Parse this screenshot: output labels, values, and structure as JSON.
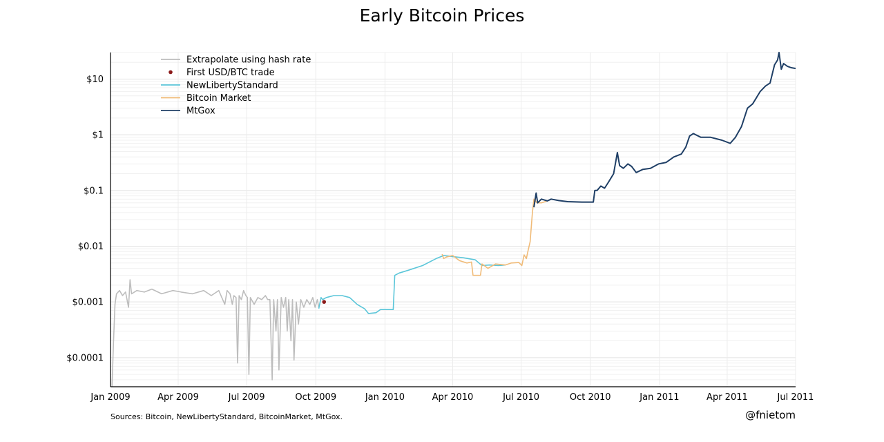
{
  "chart_data": {
    "type": "line",
    "title": "Early Bitcoin Prices",
    "xlabel": "",
    "ylabel": "",
    "yscale": "log",
    "ylim": [
      3e-05,
      30
    ],
    "xlim": [
      "2009-01-01",
      "2011-07-01"
    ],
    "grid": true,
    "legend_placement": "top-left",
    "x_tick_labels": [
      "Jan 2009",
      "Apr 2009",
      "Jul 2009",
      "Oct 2009",
      "Jan 2010",
      "Apr 2010",
      "Jul 2010",
      "Oct 2010",
      "Jan 2011",
      "Apr 2011",
      "Jul 2011"
    ],
    "x_tick_dates": [
      "2009-01-01",
      "2009-04-01",
      "2009-07-01",
      "2009-10-01",
      "2010-01-01",
      "2010-04-01",
      "2010-07-01",
      "2010-10-01",
      "2011-01-01",
      "2011-04-01",
      "2011-07-01"
    ],
    "y_tick_labels": [
      "$0.0001",
      "$0.001",
      "$0.01",
      "$0.1",
      "$1",
      "$10"
    ],
    "y_tick_values": [
      0.0001,
      0.001,
      0.01,
      0.1,
      1,
      10
    ],
    "series": [
      {
        "name": "Extrapolate using hash rate",
        "color": "#bdbdbd",
        "style": "line",
        "points": [
          [
            "2009-01-03",
            3e-05
          ],
          [
            "2009-01-05",
            0.0002
          ],
          [
            "2009-01-07",
            0.0009
          ],
          [
            "2009-01-09",
            0.0014
          ],
          [
            "2009-01-13",
            0.0016
          ],
          [
            "2009-01-17",
            0.0013
          ],
          [
            "2009-01-21",
            0.0015
          ],
          [
            "2009-01-25",
            0.0008
          ],
          [
            "2009-01-27",
            0.0025
          ],
          [
            "2009-01-29",
            0.0014
          ],
          [
            "2009-02-05",
            0.0016
          ],
          [
            "2009-02-15",
            0.0015
          ],
          [
            "2009-02-25",
            0.0017
          ],
          [
            "2009-03-10",
            0.0014
          ],
          [
            "2009-03-25",
            0.0016
          ],
          [
            "2009-04-05",
            0.0015
          ],
          [
            "2009-04-20",
            0.0014
          ],
          [
            "2009-05-05",
            0.0016
          ],
          [
            "2009-05-15",
            0.0013
          ],
          [
            "2009-05-25",
            0.0016
          ],
          [
            "2009-06-02",
            0.0009
          ],
          [
            "2009-06-05",
            0.0016
          ],
          [
            "2009-06-09",
            0.0014
          ],
          [
            "2009-06-12",
            0.0009
          ],
          [
            "2009-06-14",
            0.0013
          ],
          [
            "2009-06-17",
            0.0012
          ],
          [
            "2009-06-19",
            8e-05
          ],
          [
            "2009-06-21",
            0.0013
          ],
          [
            "2009-06-24",
            0.0011
          ],
          [
            "2009-06-27",
            0.0016
          ],
          [
            "2009-06-30",
            0.0013
          ],
          [
            "2009-07-02",
            0.0012
          ],
          [
            "2009-07-04",
            5e-05
          ],
          [
            "2009-07-06",
            0.0012
          ],
          [
            "2009-07-11",
            0.0009
          ],
          [
            "2009-07-16",
            0.0012
          ],
          [
            "2009-07-21",
            0.0011
          ],
          [
            "2009-07-26",
            0.0013
          ],
          [
            "2009-07-29",
            0.0011
          ],
          [
            "2009-08-01",
            0.0011
          ],
          [
            "2009-08-04",
            4e-05
          ],
          [
            "2009-08-06",
            0.0011
          ],
          [
            "2009-08-09",
            0.0003
          ],
          [
            "2009-08-11",
            0.0011
          ],
          [
            "2009-08-13",
            6e-05
          ],
          [
            "2009-08-16",
            0.0012
          ],
          [
            "2009-08-19",
            0.0008
          ],
          [
            "2009-08-22",
            0.0012
          ],
          [
            "2009-08-24",
            0.0003
          ],
          [
            "2009-08-26",
            0.0011
          ],
          [
            "2009-08-29",
            0.0002
          ],
          [
            "2009-08-31",
            0.0011
          ],
          [
            "2009-09-02",
            9e-05
          ],
          [
            "2009-09-05",
            0.001
          ],
          [
            "2009-09-08",
            0.0004
          ],
          [
            "2009-09-11",
            0.0011
          ],
          [
            "2009-09-15",
            0.0008
          ],
          [
            "2009-09-19",
            0.0011
          ],
          [
            "2009-09-23",
            0.0009
          ],
          [
            "2009-09-27",
            0.0012
          ],
          [
            "2009-09-30",
            0.0008
          ],
          [
            "2009-10-03",
            0.0011
          ],
          [
            "2009-10-05",
            0.0008
          ]
        ]
      },
      {
        "name": "First USD/BTC trade",
        "color": "#8b1a1a",
        "style": "point",
        "points": [
          [
            "2009-10-12",
            0.001
          ]
        ]
      },
      {
        "name": "NewLibertyStandard",
        "color": "#5bc6d9",
        "style": "line",
        "points": [
          [
            "2009-10-05",
            0.00076
          ],
          [
            "2009-10-08",
            0.0012
          ],
          [
            "2009-10-10",
            0.0011
          ],
          [
            "2009-10-15",
            0.0012
          ],
          [
            "2009-10-25",
            0.0013
          ],
          [
            "2009-11-05",
            0.0013
          ],
          [
            "2009-11-15",
            0.0012
          ],
          [
            "2009-11-25",
            0.0009
          ],
          [
            "2009-12-05",
            0.00075
          ],
          [
            "2009-12-10",
            0.00062
          ],
          [
            "2009-12-20",
            0.00064
          ],
          [
            "2009-12-26",
            0.00073
          ],
          [
            "2010-01-12",
            0.00073
          ],
          [
            "2010-01-14",
            0.003
          ],
          [
            "2010-01-20",
            0.0033
          ],
          [
            "2010-02-01",
            0.0037
          ],
          [
            "2010-02-20",
            0.0045
          ],
          [
            "2010-03-10",
            0.006
          ],
          [
            "2010-03-20",
            0.0068
          ],
          [
            "2010-04-01",
            0.0065
          ],
          [
            "2010-04-15",
            0.0062
          ],
          [
            "2010-05-01",
            0.0057
          ],
          [
            "2010-05-10",
            0.0045
          ],
          [
            "2010-05-20",
            0.0046
          ],
          [
            "2010-06-01",
            0.0045
          ],
          [
            "2010-06-10",
            0.0046
          ]
        ]
      },
      {
        "name": "Bitcoin Market",
        "color": "#f0bb78",
        "style": "line",
        "points": [
          [
            "2010-03-18",
            0.0072
          ],
          [
            "2010-03-20",
            0.006
          ],
          [
            "2010-03-24",
            0.0064
          ],
          [
            "2010-04-01",
            0.0068
          ],
          [
            "2010-04-10",
            0.0055
          ],
          [
            "2010-04-20",
            0.005
          ],
          [
            "2010-04-26",
            0.0052
          ],
          [
            "2010-04-28",
            0.003
          ],
          [
            "2010-05-08",
            0.003
          ],
          [
            "2010-05-10",
            0.0048
          ],
          [
            "2010-05-18",
            0.004
          ],
          [
            "2010-05-28",
            0.0048
          ],
          [
            "2010-06-10",
            0.0046
          ],
          [
            "2010-06-18",
            0.005
          ],
          [
            "2010-06-28",
            0.0051
          ],
          [
            "2010-07-02",
            0.0045
          ],
          [
            "2010-07-05",
            0.007
          ],
          [
            "2010-07-08",
            0.006
          ],
          [
            "2010-07-10",
            0.008
          ],
          [
            "2010-07-13",
            0.012
          ],
          [
            "2010-07-16",
            0.04
          ],
          [
            "2010-07-18",
            0.07
          ],
          [
            "2010-07-22",
            0.06
          ],
          [
            "2010-07-28",
            0.06
          ],
          [
            "2010-08-05",
            0.065
          ]
        ]
      },
      {
        "name": "MtGox",
        "color": "#1f3f66",
        "style": "line",
        "points": [
          [
            "2010-07-18",
            0.05
          ],
          [
            "2010-07-21",
            0.09
          ],
          [
            "2010-07-23",
            0.06
          ],
          [
            "2010-07-28",
            0.07
          ],
          [
            "2010-08-05",
            0.065
          ],
          [
            "2010-08-10",
            0.07
          ],
          [
            "2010-08-20",
            0.066
          ],
          [
            "2010-09-01",
            0.063
          ],
          [
            "2010-09-20",
            0.062
          ],
          [
            "2010-10-05",
            0.062
          ],
          [
            "2010-10-07",
            0.1
          ],
          [
            "2010-10-10",
            0.1
          ],
          [
            "2010-10-15",
            0.12
          ],
          [
            "2010-10-20",
            0.11
          ],
          [
            "2010-10-25",
            0.14
          ],
          [
            "2010-11-01",
            0.2
          ],
          [
            "2010-11-06",
            0.48
          ],
          [
            "2010-11-09",
            0.28
          ],
          [
            "2010-11-14",
            0.25
          ],
          [
            "2010-11-20",
            0.3
          ],
          [
            "2010-11-25",
            0.27
          ],
          [
            "2010-12-01",
            0.21
          ],
          [
            "2010-12-10",
            0.24
          ],
          [
            "2010-12-20",
            0.25
          ],
          [
            "2010-12-31",
            0.3
          ],
          [
            "2011-01-10",
            0.32
          ],
          [
            "2011-01-20",
            0.4
          ],
          [
            "2011-01-30",
            0.45
          ],
          [
            "2011-02-05",
            0.6
          ],
          [
            "2011-02-10",
            0.95
          ],
          [
            "2011-02-15",
            1.05
          ],
          [
            "2011-02-25",
            0.9
          ],
          [
            "2011-03-10",
            0.9
          ],
          [
            "2011-03-25",
            0.8
          ],
          [
            "2011-04-05",
            0.7
          ],
          [
            "2011-04-12",
            0.9
          ],
          [
            "2011-04-20",
            1.4
          ],
          [
            "2011-04-28",
            3.0
          ],
          [
            "2011-05-05",
            3.6
          ],
          [
            "2011-05-15",
            6.0
          ],
          [
            "2011-05-22",
            7.5
          ],
          [
            "2011-05-28",
            8.5
          ],
          [
            "2011-06-03",
            18.0
          ],
          [
            "2011-06-07",
            22.0
          ],
          [
            "2011-06-09",
            30.0
          ],
          [
            "2011-06-12",
            15.0
          ],
          [
            "2011-06-15",
            19.0
          ],
          [
            "2011-06-20",
            17.0
          ],
          [
            "2011-06-25",
            16.0
          ],
          [
            "2011-07-01",
            15.5
          ]
        ]
      }
    ]
  },
  "sources_text": "Sources: Bitcoin, NewLibertyStandard, BitcoinMarket, MtGox.",
  "credit_text": "@fnietom"
}
